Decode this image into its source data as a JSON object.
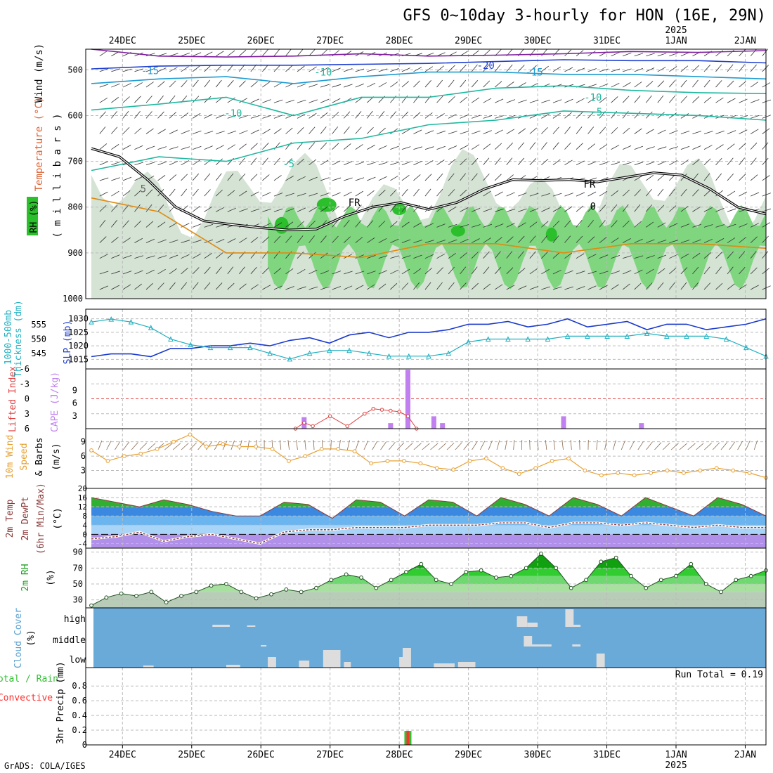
{
  "title": "GFS 0~10day 3-hourly for HON (16E, 29N)",
  "credit": "GrADS: COLA/IGES",
  "colors": {
    "grid": "#bbbbbb",
    "rh_dark": "#2bbf2b",
    "rh_mid": "#7fd67f",
    "rh_light": "#c9dcc9",
    "temp_teal": "#20b8a0",
    "temp_cyan": "#1e9bd0",
    "temp_blue": "#2040d0",
    "temp_purple": "#8020a0",
    "temp_orange": "#e08a10",
    "slp": "#1a3acc",
    "thickness": "#20b0c0",
    "cape": "#c080f0",
    "lifted": "#e04040",
    "wind_speed": "#e8a030",
    "cloud_bg": "#6aaad8",
    "cloud_bar": "#dddddd",
    "rain": "#30c030",
    "convective": "#ff3030"
  },
  "chart_data": [
    {
      "type": "line",
      "panel": "profile",
      "ylabels": [
        "Wind (m/s)",
        "Temperature (°C)",
        "RH (%)",
        "( m i l l i b a r s )"
      ],
      "yticks": [
        500,
        600,
        700,
        800,
        900,
        1000
      ],
      "xticks_top": [
        "24DEC",
        "25DEC",
        "26DEC",
        "27DEC",
        "28DEC",
        "29DEC",
        "30DEC",
        "31DEC",
        "1JAN",
        "2JAN"
      ],
      "year_label": "2025",
      "contour_labels": [
        "-20",
        "-15",
        "-15",
        "-10",
        "-10",
        "-5",
        "-5",
        "-10",
        "FR",
        "FR",
        "0",
        "5"
      ],
      "freezing_level_hpa": [
        672,
        690,
        740,
        800,
        830,
        838,
        845,
        850,
        848,
        820,
        800,
        790,
        805,
        790,
        760,
        740,
        742,
        740,
        745,
        735,
        725,
        730,
        760,
        800,
        815
      ]
    },
    {
      "type": "line",
      "panel": "slp_thickness",
      "ylabels": [
        "1000-500mb Thickness (dm)",
        "SLP (mb)"
      ],
      "yticks_left": [
        545,
        550,
        555
      ],
      "yticks_right": [
        1015,
        1020,
        1025,
        1030
      ],
      "series": [
        {
          "name": "SLP (mb)",
          "axis": "right",
          "values": [
            1016,
            1017,
            1017,
            1016,
            1019,
            1019,
            1020,
            1020,
            1021,
            1020,
            1022,
            1023,
            1021,
            1024,
            1025,
            1023,
            1025,
            1025,
            1026,
            1028,
            1028,
            1029,
            1027,
            1028,
            1030,
            1027,
            1028,
            1029,
            1026,
            1028,
            1028,
            1026,
            1027,
            1028,
            1030
          ]
        },
        {
          "name": "1000-500mb Thickness (dm)",
          "axis": "left",
          "values": [
            556,
            557,
            556,
            554,
            550,
            548,
            547,
            547,
            547,
            545,
            543,
            545,
            546,
            546,
            545,
            544,
            544,
            544,
            545,
            549,
            550,
            550,
            550,
            550,
            551,
            551,
            551,
            551,
            552,
            551,
            551,
            551,
            550,
            547,
            544
          ]
        }
      ]
    },
    {
      "type": "bar",
      "panel": "cape_lifted",
      "ylabels": [
        "Lifted Index",
        "CAPE (J/kg)"
      ],
      "yticks_left": [
        "-6",
        "-3",
        "0",
        "3",
        "6"
      ],
      "yticks_right": [
        3,
        6,
        9
      ],
      "cape_bars": [
        {
          "x": 26.625,
          "value": 2.7
        },
        {
          "x": 27.875,
          "value": 1.3
        },
        {
          "x": 28.125,
          "value": 13.8
        },
        {
          "x": 28.5,
          "value": 2.9
        },
        {
          "x": 28.625,
          "value": 1.3
        },
        {
          "x": 30.375,
          "value": 2.9
        },
        {
          "x": 31.5,
          "value": 1.3
        }
      ],
      "lifted_index": [
        {
          "x": 26.5,
          "value": 6
        },
        {
          "x": 26.625,
          "value": 4.8
        },
        {
          "x": 26.75,
          "value": 5.5
        },
        {
          "x": 27.0,
          "value": 3.5
        },
        {
          "x": 27.25,
          "value": 5.5
        },
        {
          "x": 27.5,
          "value": 3.0
        },
        {
          "x": 27.625,
          "value": 2.0
        },
        {
          "x": 27.75,
          "value": 2.2
        },
        {
          "x": 27.875,
          "value": 2.4
        },
        {
          "x": 28.0,
          "value": 2.6
        },
        {
          "x": 28.125,
          "value": 3.5
        },
        {
          "x": 28.25,
          "value": 6
        }
      ]
    },
    {
      "type": "line",
      "panel": "wind10m",
      "ylabels": [
        "10m Wind",
        "Speed",
        "& Barbs",
        "(m/s)"
      ],
      "yticks": [
        3,
        6,
        9
      ],
      "series": [
        {
          "name": "Speed",
          "values": [
            7.2,
            5.0,
            6.0,
            6.5,
            7.5,
            9.0,
            10.5,
            8.0,
            8.5,
            8.0,
            8.0,
            7.5,
            5.0,
            6.0,
            7.5,
            7.5,
            7.0,
            4.5,
            5.0,
            5.0,
            4.5,
            3.5,
            3.2,
            5.0,
            5.5,
            3.5,
            2.3,
            3.5,
            5.0,
            5.5,
            3.0,
            2.0,
            2.5,
            2.0,
            2.5,
            3.0,
            2.5,
            3.0,
            3.5,
            3.0,
            2.5,
            1.5
          ]
        }
      ]
    },
    {
      "type": "area",
      "panel": "temp2m",
      "ylabels": [
        "2m Temp",
        "2m DewPt",
        "(6hr Min/Max)",
        "(°C)"
      ],
      "yticks": [
        -4,
        0,
        4,
        8,
        12,
        16,
        20
      ],
      "series": [
        {
          "name": "2m Temp",
          "values": [
            16,
            14,
            12,
            15,
            13,
            10,
            8,
            8,
            14,
            13,
            7,
            15,
            14,
            8,
            15,
            14,
            8,
            16,
            13,
            8,
            16,
            13,
            8,
            16,
            12,
            8,
            16,
            13,
            8
          ]
        },
        {
          "name": "2m DewPt",
          "values": [
            -2,
            -1,
            1,
            -3,
            -1,
            0,
            -2,
            -4,
            1,
            2,
            2,
            3,
            3,
            3,
            4,
            4,
            4,
            5,
            5,
            3,
            5,
            5,
            4,
            5,
            4,
            3,
            4,
            3,
            3
          ]
        }
      ]
    },
    {
      "type": "area",
      "panel": "rh2m",
      "ylabels": [
        "2m RH",
        "(%)"
      ],
      "yticks": [
        30,
        50,
        70,
        90
      ],
      "series": [
        {
          "name": "2m RH",
          "values": [
            23,
            33,
            38,
            35,
            40,
            27,
            35,
            40,
            48,
            50,
            40,
            32,
            37,
            43,
            40,
            45,
            55,
            62,
            58,
            45,
            55,
            65,
            75,
            55,
            50,
            65,
            67,
            58,
            60,
            70,
            88,
            70,
            45,
            55,
            78,
            83,
            60,
            45,
            55,
            60,
            75,
            50,
            40,
            55,
            60,
            67
          ]
        }
      ]
    },
    {
      "type": "bar",
      "panel": "cloud",
      "ylabels": [
        "Cloud Cover",
        "(%)"
      ],
      "ytick_labels": [
        "high",
        "middle",
        "low"
      ]
    },
    {
      "type": "bar",
      "panel": "precip",
      "ylabels": [
        "Total / Rain",
        "Convective",
        "3hr Precip (mm)"
      ],
      "yticks": [
        0,
        0.2,
        0.4,
        0.6,
        0.8
      ],
      "run_total_label": "Run Total = 0.19",
      "bars": [
        {
          "x": 28.125,
          "total": 0.19,
          "convective": 0.19
        }
      ],
      "xticks_bottom": [
        "24DEC",
        "25DEC",
        "26DEC",
        "27DEC",
        "28DEC",
        "29DEC",
        "30DEC",
        "31DEC",
        "1JAN",
        "2JAN"
      ],
      "year_label": "2025"
    }
  ]
}
